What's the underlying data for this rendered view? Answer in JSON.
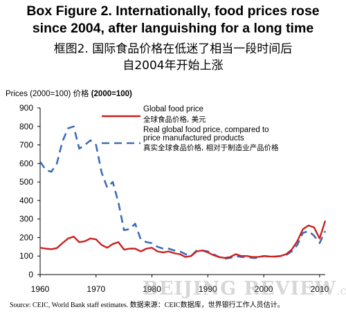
{
  "title": {
    "en_line1": "Box Figure 2. Internationally, food prices rose",
    "en_line2": "since 2004, after languishing for a long time",
    "zh_line1": "框图2. 国际食品价格在低迷了相当一段时间后",
    "zh_line2": "自2004年开始上涨"
  },
  "source": "Source: CEIC, World Bank staff estimates.    数据来源：CEIC数据库，世界银行工作人员估计。",
  "watermark": {
    "main": "BEIJING REVIEW",
    "suffix": ".com.cn"
  },
  "chart_data": {
    "type": "line",
    "ylabel": "Prices (2000=100) 价格",
    "ylabel_bold": "(2000=100)",
    "ylim": [
      0,
      900
    ],
    "xlim": [
      1960,
      2011
    ],
    "y_ticks": [
      "0",
      "100",
      "200",
      "300",
      "400",
      "500",
      "600",
      "700",
      "800",
      "900"
    ],
    "x_ticks": [
      "1960",
      "1970",
      "1980",
      "1990",
      "2000",
      "2010"
    ],
    "grid": false,
    "legend_placement": "top-right",
    "series": [
      {
        "name": "Global food price",
        "name_zh": "全球食品价格, 美元",
        "color": "#cc1f1f",
        "style": "solid",
        "x": [
          1960,
          1961,
          1962,
          1963,
          1964,
          1965,
          1966,
          1967,
          1968,
          1969,
          1970,
          1971,
          1972,
          1973,
          1974,
          1975,
          1976,
          1977,
          1978,
          1979,
          1980,
          1981,
          1982,
          1983,
          1984,
          1985,
          1986,
          1987,
          1988,
          1989,
          1990,
          1991,
          1992,
          1993,
          1994,
          1995,
          1996,
          1997,
          1998,
          1999,
          2000,
          2001,
          2002,
          2003,
          2004,
          2005,
          2006,
          2007,
          2008,
          2009,
          2010,
          2011
        ],
        "y": [
          145,
          140,
          137,
          143,
          170,
          195,
          205,
          175,
          180,
          195,
          190,
          160,
          145,
          165,
          175,
          135,
          140,
          140,
          125,
          140,
          145,
          125,
          120,
          125,
          115,
          110,
          95,
          100,
          125,
          130,
          120,
          105,
          95,
          90,
          95,
          110,
          100,
          100,
          95,
          95,
          100,
          98,
          97,
          100,
          110,
          135,
          180,
          245,
          265,
          255,
          195,
          290
        ]
      },
      {
        "name": "Real global food price, compared to price manufactured products",
        "name_zh": "真实全球食品价格, 相对于制造业产品价格",
        "color": "#3b6cb8",
        "style": "dashed",
        "x": [
          1960,
          1961,
          1962,
          1963,
          1964,
          1965,
          1966,
          1967,
          1968,
          1969,
          1970,
          1971,
          1972,
          1973,
          1974,
          1975,
          1976,
          1977,
          1978,
          1979,
          1980,
          1981,
          1982,
          1983,
          1984,
          1985,
          1986,
          1987,
          1988,
          1989,
          1990,
          1991,
          1992,
          1993,
          1994,
          1995,
          1996,
          1997,
          1998,
          1999,
          2000,
          2001,
          2002,
          2003,
          2004,
          2005,
          2006,
          2007,
          2008,
          2009,
          2010,
          2011
        ],
        "y": [
          610,
          565,
          555,
          600,
          720,
          790,
          800,
          680,
          700,
          725,
          700,
          550,
          470,
          500,
          390,
          240,
          245,
          275,
          190,
          175,
          170,
          150,
          140,
          140,
          130,
          125,
          110,
          100,
          130,
          130,
          125,
          110,
          95,
          85,
          90,
          100,
          95,
          95,
          90,
          90,
          100,
          98,
          97,
          100,
          105,
          125,
          160,
          225,
          235,
          210,
          170,
          235
        ]
      }
    ]
  }
}
